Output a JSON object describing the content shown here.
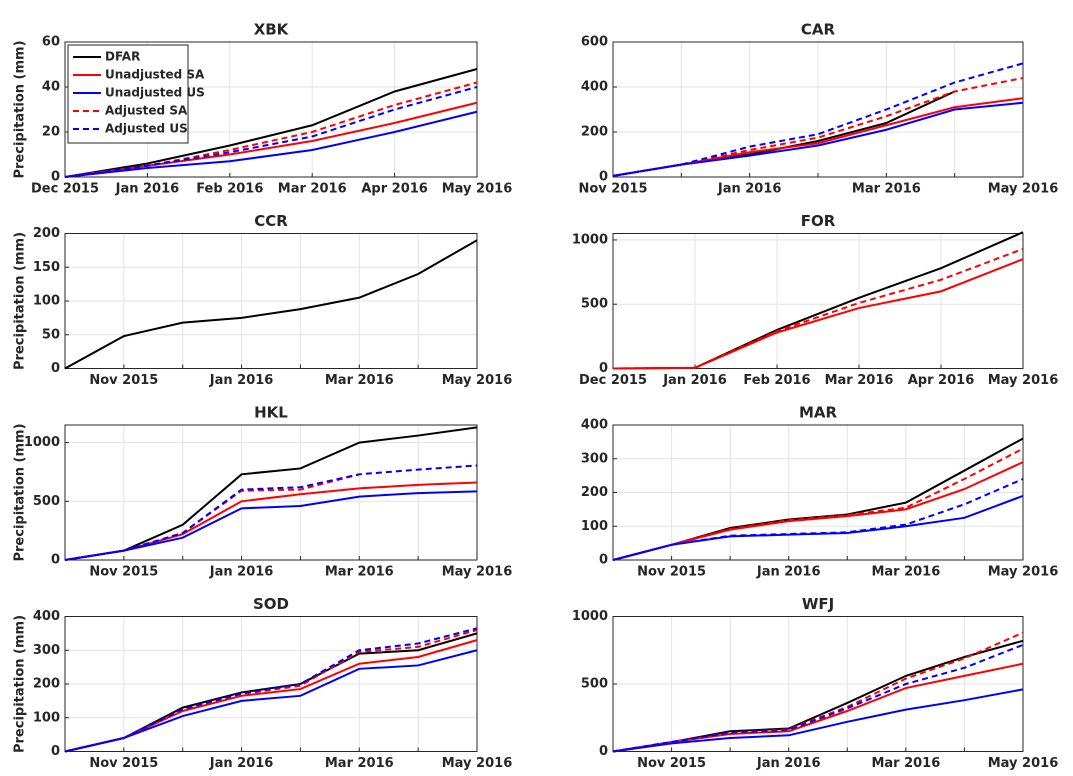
{
  "chart_data": [
    {
      "type": "line",
      "title": "XBK",
      "ylabel": "Precipitation (mm)",
      "legend": "upper left",
      "x": [
        "Dec 2015",
        "Jan 2016",
        "Feb 2016",
        "Mar 2016",
        "Apr 2016",
        "May 2016"
      ],
      "ylim": [
        0,
        60
      ],
      "yticks": [
        0,
        20,
        40,
        60
      ],
      "grid": true,
      "series": [
        {
          "name": "DFAR",
          "color": "#000000",
          "dashed": false,
          "values": [
            0,
            6,
            14,
            23,
            38,
            48
          ]
        },
        {
          "name": "Unadjusted SA",
          "color": "#ff0000",
          "dashed": false,
          "values": [
            0,
            5,
            10,
            16,
            24,
            33
          ]
        },
        {
          "name": "Unadjusted US",
          "color": "#0000ff",
          "dashed": false,
          "values": [
            0,
            4,
            7,
            12,
            20,
            29
          ]
        },
        {
          "name": "Adjusted SA",
          "color": "#ff0000",
          "dashed": true,
          "values": [
            0,
            5,
            12,
            20,
            32,
            42
          ]
        },
        {
          "name": "Adjusted US",
          "color": "#0000ff",
          "dashed": true,
          "values": [
            0,
            5,
            11,
            18,
            30,
            40
          ]
        }
      ]
    },
    {
      "type": "line",
      "title": "CAR",
      "x": [
        "Nov 2015",
        null,
        "Jan 2016",
        null,
        "Mar 2016",
        null,
        "May 2016"
      ],
      "ylim": [
        0,
        600
      ],
      "yticks": [
        0,
        200,
        400,
        600
      ],
      "grid": true,
      "series": [
        {
          "color": "#000000",
          "dashed": false,
          "values": [
            5,
            55,
            100,
            160,
            240,
            380,
            null
          ]
        },
        {
          "color": "#ff0000",
          "dashed": false,
          "values": [
            5,
            55,
            110,
            150,
            230,
            310,
            350
          ]
        },
        {
          "color": "#0000ff",
          "dashed": false,
          "values": [
            5,
            55,
            95,
            140,
            210,
            300,
            330
          ]
        },
        {
          "color": "#ff0000",
          "dashed": true,
          "values": [
            5,
            55,
            120,
            175,
            270,
            380,
            440
          ]
        },
        {
          "color": "#0000ff",
          "dashed": true,
          "values": [
            5,
            55,
            135,
            190,
            300,
            420,
            505
          ]
        }
      ]
    },
    {
      "type": "line",
      "title": "CCR",
      "ylabel": "Precipitation (mm)",
      "x": [
        null,
        "Nov 2015",
        null,
        "Jan 2016",
        null,
        "Mar 2016",
        null,
        "May 2016"
      ],
      "ylim": [
        0,
        200
      ],
      "yticks": [
        0,
        50,
        100,
        150,
        200
      ],
      "grid": true,
      "series": [
        {
          "color": "#000000",
          "dashed": false,
          "values": [
            0,
            48,
            68,
            75,
            88,
            105,
            140,
            190
          ]
        }
      ]
    },
    {
      "type": "line",
      "title": "FOR",
      "x": [
        "Dec 2015",
        "Jan 2016",
        "Feb 2016",
        "Mar 2016",
        "Apr 2016",
        "May 2016"
      ],
      "ylim": [
        0,
        1050
      ],
      "yticks": [
        0,
        500,
        1000
      ],
      "grid": true,
      "series": [
        {
          "color": "#000000",
          "dashed": false,
          "values": [
            0,
            5,
            300,
            550,
            780,
            1060
          ]
        },
        {
          "color": "#ff0000",
          "dashed": false,
          "values": [
            0,
            5,
            280,
            470,
            600,
            850
          ]
        },
        {
          "color": "#ff0000",
          "dashed": true,
          "values": [
            0,
            5,
            290,
            510,
            690,
            930
          ]
        }
      ]
    },
    {
      "type": "line",
      "title": "HKL",
      "ylabel": "Precipitation (mm)",
      "x": [
        null,
        "Nov 2015",
        null,
        "Jan 2016",
        null,
        "Mar 2016",
        null,
        "May 2016"
      ],
      "ylim": [
        0,
        1150
      ],
      "yticks": [
        0,
        500,
        1000
      ],
      "grid": true,
      "series": [
        {
          "color": "#000000",
          "dashed": false,
          "values": [
            0,
            80,
            300,
            730,
            780,
            1000,
            1060,
            1130
          ]
        },
        {
          "color": "#ff0000",
          "dashed": false,
          "values": [
            0,
            80,
            220,
            500,
            560,
            610,
            640,
            660
          ]
        },
        {
          "color": "#0000ff",
          "dashed": false,
          "values": [
            0,
            80,
            190,
            440,
            460,
            540,
            570,
            585
          ]
        },
        {
          "color": "#ff0000",
          "dashed": true,
          "values": [
            0,
            80,
            230,
            590,
            600,
            730,
            null,
            null
          ]
        },
        {
          "color": "#0000ff",
          "dashed": true,
          "values": [
            0,
            80,
            230,
            600,
            620,
            730,
            770,
            805
          ]
        }
      ]
    },
    {
      "type": "line",
      "title": "MAR",
      "x": [
        null,
        "Nov 2015",
        null,
        "Jan 2016",
        null,
        "Mar 2016",
        null,
        "May 2016"
      ],
      "ylim": [
        0,
        400
      ],
      "yticks": [
        0,
        100,
        200,
        300,
        400
      ],
      "grid": true,
      "series": [
        {
          "color": "#000000",
          "dashed": false,
          "values": [
            0,
            45,
            95,
            120,
            135,
            170,
            265,
            360
          ]
        },
        {
          "color": "#ff0000",
          "dashed": false,
          "values": [
            0,
            45,
            90,
            115,
            130,
            150,
            210,
            290
          ]
        },
        {
          "color": "#0000ff",
          "dashed": false,
          "values": [
            0,
            45,
            70,
            75,
            80,
            100,
            125,
            190
          ]
        },
        {
          "color": "#ff0000",
          "dashed": true,
          "values": [
            0,
            45,
            92,
            118,
            133,
            155,
            240,
            330
          ]
        },
        {
          "color": "#0000ff",
          "dashed": true,
          "values": [
            0,
            45,
            72,
            77,
            82,
            105,
            165,
            240
          ]
        }
      ]
    },
    {
      "type": "line",
      "title": "SOD",
      "ylabel": "Precipitation (mm)",
      "x": [
        null,
        "Nov 2015",
        null,
        "Jan 2016",
        null,
        "Mar 2016",
        null,
        "May 2016"
      ],
      "ylim": [
        0,
        400
      ],
      "yticks": [
        0,
        100,
        200,
        300,
        400
      ],
      "grid": true,
      "series": [
        {
          "color": "#000000",
          "dashed": false,
          "values": [
            0,
            40,
            130,
            175,
            200,
            290,
            300,
            350
          ]
        },
        {
          "color": "#ff0000",
          "dashed": false,
          "values": [
            0,
            40,
            120,
            165,
            185,
            260,
            280,
            330
          ]
        },
        {
          "color": "#0000ff",
          "dashed": false,
          "values": [
            0,
            40,
            105,
            150,
            165,
            245,
            255,
            300
          ]
        },
        {
          "color": "#ff0000",
          "dashed": true,
          "values": [
            0,
            40,
            125,
            170,
            195,
            295,
            310,
            360
          ]
        },
        {
          "color": "#0000ff",
          "dashed": true,
          "values": [
            0,
            40,
            125,
            172,
            200,
            300,
            320,
            365
          ]
        }
      ]
    },
    {
      "type": "line",
      "title": "WFJ",
      "x": [
        null,
        "Nov 2015",
        null,
        "Jan 2016",
        null,
        "Mar 2016",
        null,
        "May 2016"
      ],
      "ylim": [
        0,
        1000
      ],
      "yticks": [
        0,
        500,
        1000
      ],
      "grid": true,
      "series": [
        {
          "color": "#000000",
          "dashed": false,
          "values": [
            0,
            70,
            150,
            170,
            360,
            560,
            700,
            820
          ]
        },
        {
          "color": "#ff0000",
          "dashed": false,
          "values": [
            0,
            70,
            130,
            150,
            300,
            470,
            560,
            650
          ]
        },
        {
          "color": "#0000ff",
          "dashed": false,
          "values": [
            0,
            60,
            100,
            120,
            220,
            310,
            380,
            460
          ]
        },
        {
          "color": "#ff0000",
          "dashed": true,
          "values": [
            0,
            70,
            140,
            165,
            330,
            540,
            690,
            880
          ]
        },
        {
          "color": "#0000ff",
          "dashed": true,
          "values": [
            0,
            70,
            140,
            160,
            320,
            500,
            620,
            790
          ]
        }
      ]
    }
  ]
}
